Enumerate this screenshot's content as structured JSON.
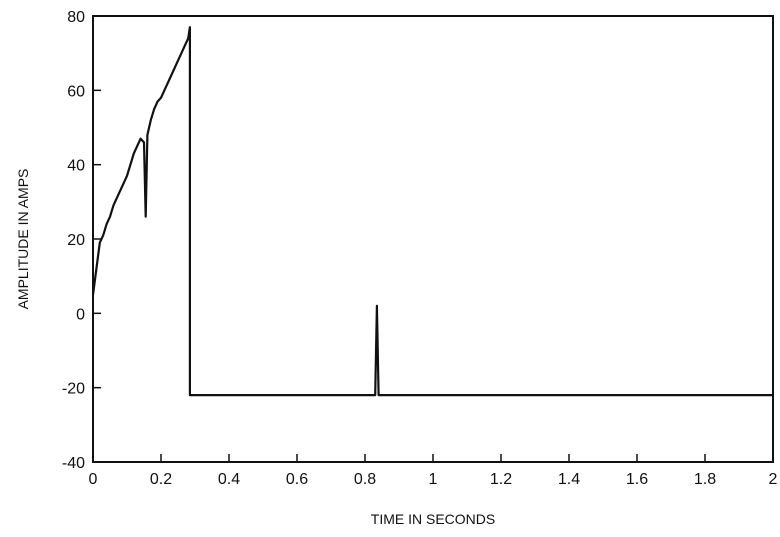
{
  "chart_data": {
    "type": "line",
    "title": "",
    "xlabel": "TIME IN SECONDS",
    "ylabel": "AMPLITUDE IN AMPS",
    "xlim": [
      0,
      2
    ],
    "ylim": [
      -40,
      80
    ],
    "x_ticks": [
      "0",
      "0.2",
      "0.4",
      "0.6",
      "0.8",
      "1",
      "1.2",
      "1.4",
      "1.6",
      "1.8",
      "2"
    ],
    "y_ticks": [
      "80",
      "60",
      "40",
      "20",
      "0",
      "-20",
      "-40"
    ],
    "grid": false,
    "series": [
      {
        "x": [
          0.0,
          0.01,
          0.02,
          0.03,
          0.04,
          0.05,
          0.06,
          0.07,
          0.08,
          0.09,
          0.1,
          0.11,
          0.12,
          0.13,
          0.14,
          0.15,
          0.155,
          0.16,
          0.17,
          0.18,
          0.19,
          0.2,
          0.21,
          0.22,
          0.23,
          0.24,
          0.25,
          0.26,
          0.27,
          0.28,
          0.285,
          0.285,
          0.29,
          0.5,
          0.83,
          0.835,
          0.84,
          0.845,
          1.0,
          1.5,
          2.0
        ],
        "y": [
          5,
          12,
          19,
          21,
          24,
          26,
          29,
          31,
          33,
          35,
          37,
          40,
          43,
          45,
          47,
          46,
          26,
          48,
          52,
          55,
          57,
          58,
          60,
          62,
          64,
          66,
          68,
          70,
          72,
          74,
          77,
          -22,
          -22,
          -22,
          -22,
          2,
          -22,
          -22,
          -22,
          -22,
          -22
        ]
      }
    ]
  }
}
